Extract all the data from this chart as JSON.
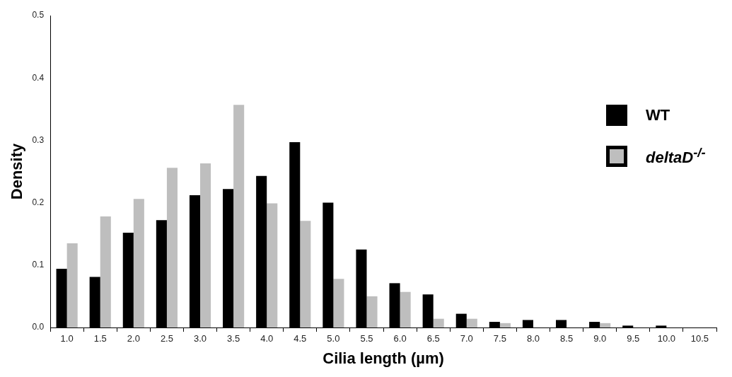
{
  "chart_data": {
    "type": "bar",
    "xlabel": "Cilia length (µm)",
    "ylabel": "Density",
    "categories": [
      "1.0",
      "1.5",
      "2.0",
      "2.5",
      "3.0",
      "3.5",
      "4.0",
      "4.5",
      "5.0",
      "5.5",
      "6.0",
      "6.5",
      "7.0",
      "7.5",
      "8.0",
      "8.5",
      "9.0",
      "9.5",
      "10.0",
      "10.5"
    ],
    "series": [
      {
        "name": "WT",
        "color": "#000000",
        "values": [
          0.094,
          0.081,
          0.152,
          0.172,
          0.212,
          0.222,
          0.243,
          0.297,
          0.2,
          0.125,
          0.071,
          0.053,
          0.022,
          0.009,
          0.012,
          0.012,
          0.009,
          0.003,
          0.003,
          null
        ]
      },
      {
        "name": "deltaD$^{-/-}$",
        "color": "#bebebe",
        "values": [
          0.135,
          0.178,
          0.206,
          0.256,
          0.263,
          0.357,
          0.199,
          0.171,
          0.078,
          0.05,
          0.057,
          0.014,
          0.014,
          0.007,
          null,
          null,
          0.007,
          null,
          null,
          null
        ]
      }
    ],
    "ylim": [
      0,
      0.5
    ],
    "yticks": [
      {
        "value": 0,
        "label": "0.0"
      },
      0.1,
      0.2,
      0.3,
      0.4,
      0.5
    ],
    "grid": false,
    "legend": "top right"
  }
}
